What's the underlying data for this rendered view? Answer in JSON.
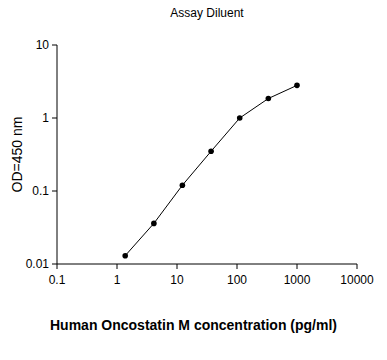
{
  "chart_data": {
    "type": "line",
    "title": "Assay Diluent",
    "xlabel": "Human Oncostatin M concentration (pg/ml)",
    "ylabel": "OD=450 nm",
    "x": [
      1.37,
      4.12,
      12.3,
      37,
      111,
      333,
      1000
    ],
    "values": [
      0.013,
      0.036,
      0.12,
      0.35,
      1.0,
      1.85,
      2.8
    ],
    "color": "#000000",
    "marker": "circle",
    "line_style": "solid",
    "log": true,
    "xlim": [
      0.1,
      10000
    ],
    "xticks": [
      0.1,
      1,
      10,
      100,
      1000,
      10000
    ],
    "ylim": [
      0.01,
      10
    ],
    "yticks": [
      0.01,
      0.1,
      1,
      10
    ],
    "grid": false
  }
}
